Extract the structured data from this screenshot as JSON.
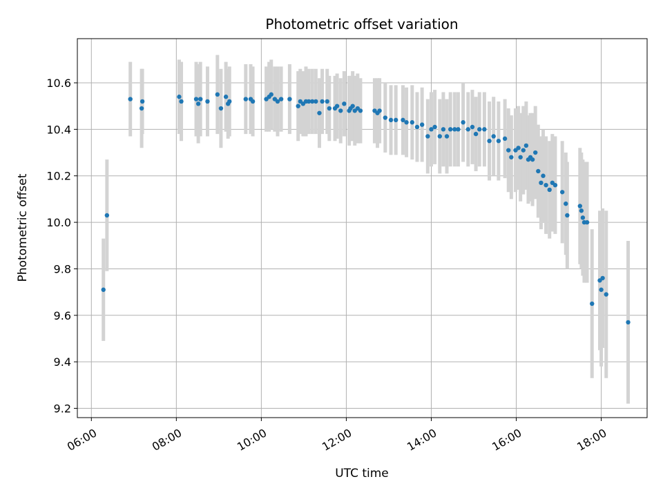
{
  "chart_data": {
    "type": "scatter",
    "title": "Photometric offset variation",
    "xlabel": "UTC time",
    "ylabel": "Photometric offset",
    "x_tick_labels": [
      "06:00",
      "08:00",
      "10:00",
      "12:00",
      "14:00",
      "16:00",
      "18:00"
    ],
    "x_ticks_hours": [
      6,
      8,
      10,
      12,
      14,
      16,
      18
    ],
    "y_ticks": [
      9.2,
      9.4,
      9.6,
      9.8,
      10.0,
      10.2,
      10.4,
      10.6
    ],
    "y_tick_labels": [
      "9.2",
      "9.4",
      "9.6",
      "9.8",
      "10.0",
      "10.2",
      "10.4",
      "10.6"
    ],
    "xlim_hours": [
      5.67,
      19.08
    ],
    "ylim": [
      9.16,
      10.79
    ],
    "grid": true,
    "colors": {
      "point": "#1f77b4",
      "error_bar": "#d3d3d3",
      "grid": "#b0b0b0"
    },
    "series": [
      {
        "points": [
          {
            "t": "06:17",
            "y": 9.71,
            "e": 0.22
          },
          {
            "t": "06:22",
            "y": 10.03,
            "e": 0.24
          },
          {
            "t": "06:55",
            "y": 10.53,
            "e": 0.16
          },
          {
            "t": "07:11",
            "y": 10.49,
            "e": 0.17
          },
          {
            "t": "07:12",
            "y": 10.52,
            "e": 0.14
          },
          {
            "t": "08:04",
            "y": 10.54,
            "e": 0.16
          },
          {
            "t": "08:07",
            "y": 10.52,
            "e": 0.17
          },
          {
            "t": "08:28",
            "y": 10.53,
            "e": 0.16
          },
          {
            "t": "08:31",
            "y": 10.51,
            "e": 0.17
          },
          {
            "t": "08:34",
            "y": 10.53,
            "e": 0.16
          },
          {
            "t": "08:44",
            "y": 10.52,
            "e": 0.15
          },
          {
            "t": "08:58",
            "y": 10.55,
            "e": 0.17
          },
          {
            "t": "09:03",
            "y": 10.49,
            "e": 0.17
          },
          {
            "t": "09:10",
            "y": 10.54,
            "e": 0.15
          },
          {
            "t": "09:13",
            "y": 10.51,
            "e": 0.15
          },
          {
            "t": "09:15",
            "y": 10.52,
            "e": 0.15
          },
          {
            "t": "09:38",
            "y": 10.53,
            "e": 0.15
          },
          {
            "t": "09:45",
            "y": 10.53,
            "e": 0.15
          },
          {
            "t": "09:48",
            "y": 10.52,
            "e": 0.15
          },
          {
            "t": "10:07",
            "y": 10.53,
            "e": 0.14
          },
          {
            "t": "10:11",
            "y": 10.54,
            "e": 0.15
          },
          {
            "t": "10:14",
            "y": 10.55,
            "e": 0.15
          },
          {
            "t": "10:19",
            "y": 10.53,
            "e": 0.14
          },
          {
            "t": "10:23",
            "y": 10.52,
            "e": 0.15
          },
          {
            "t": "10:28",
            "y": 10.53,
            "e": 0.14
          },
          {
            "t": "10:40",
            "y": 10.53,
            "e": 0.15
          },
          {
            "t": "10:52",
            "y": 10.5,
            "e": 0.15
          },
          {
            "t": "10:55",
            "y": 10.52,
            "e": 0.14
          },
          {
            "t": "10:59",
            "y": 10.51,
            "e": 0.14
          },
          {
            "t": "11:03",
            "y": 10.52,
            "e": 0.15
          },
          {
            "t": "11:07",
            "y": 10.52,
            "e": 0.14
          },
          {
            "t": "11:12",
            "y": 10.52,
            "e": 0.14
          },
          {
            "t": "11:17",
            "y": 10.52,
            "e": 0.14
          },
          {
            "t": "11:22",
            "y": 10.47,
            "e": 0.15
          },
          {
            "t": "11:26",
            "y": 10.52,
            "e": 0.14
          },
          {
            "t": "11:33",
            "y": 10.52,
            "e": 0.14
          },
          {
            "t": "11:36",
            "y": 10.49,
            "e": 0.14
          },
          {
            "t": "11:44",
            "y": 10.49,
            "e": 0.14
          },
          {
            "t": "11:47",
            "y": 10.5,
            "e": 0.14
          },
          {
            "t": "11:52",
            "y": 10.48,
            "e": 0.14
          },
          {
            "t": "11:57",
            "y": 10.51,
            "e": 0.14
          },
          {
            "t": "12:04",
            "y": 10.48,
            "e": 0.15
          },
          {
            "t": "12:06",
            "y": 10.49,
            "e": 0.14
          },
          {
            "t": "12:09",
            "y": 10.5,
            "e": 0.15
          },
          {
            "t": "12:12",
            "y": 10.48,
            "e": 0.15
          },
          {
            "t": "12:16",
            "y": 10.49,
            "e": 0.15
          },
          {
            "t": "12:20",
            "y": 10.48,
            "e": 0.14
          },
          {
            "t": "12:40",
            "y": 10.48,
            "e": 0.14
          },
          {
            "t": "12:44",
            "y": 10.47,
            "e": 0.15
          },
          {
            "t": "12:47",
            "y": 10.48,
            "e": 0.14
          },
          {
            "t": "12:55",
            "y": 10.45,
            "e": 0.15
          },
          {
            "t": "13:03",
            "y": 10.44,
            "e": 0.15
          },
          {
            "t": "13:10",
            "y": 10.44,
            "e": 0.15
          },
          {
            "t": "13:20",
            "y": 10.44,
            "e": 0.15
          },
          {
            "t": "13:25",
            "y": 10.43,
            "e": 0.15
          },
          {
            "t": "13:33",
            "y": 10.43,
            "e": 0.16
          },
          {
            "t": "13:40",
            "y": 10.41,
            "e": 0.15
          },
          {
            "t": "13:47",
            "y": 10.42,
            "e": 0.16
          },
          {
            "t": "13:55",
            "y": 10.37,
            "e": 0.16
          },
          {
            "t": "14:00",
            "y": 10.4,
            "e": 0.16
          },
          {
            "t": "14:05",
            "y": 10.41,
            "e": 0.16
          },
          {
            "t": "14:12",
            "y": 10.37,
            "e": 0.16
          },
          {
            "t": "14:17",
            "y": 10.4,
            "e": 0.16
          },
          {
            "t": "14:22",
            "y": 10.37,
            "e": 0.16
          },
          {
            "t": "14:27",
            "y": 10.4,
            "e": 0.16
          },
          {
            "t": "14:33",
            "y": 10.4,
            "e": 0.16
          },
          {
            "t": "14:38",
            "y": 10.4,
            "e": 0.16
          },
          {
            "t": "14:45",
            "y": 10.43,
            "e": 0.17
          },
          {
            "t": "14:52",
            "y": 10.4,
            "e": 0.16
          },
          {
            "t": "14:58",
            "y": 10.41,
            "e": 0.16
          },
          {
            "t": "15:03",
            "y": 10.38,
            "e": 0.16
          },
          {
            "t": "15:08",
            "y": 10.4,
            "e": 0.16
          },
          {
            "t": "15:15",
            "y": 10.4,
            "e": 0.16
          },
          {
            "t": "15:22",
            "y": 10.35,
            "e": 0.17
          },
          {
            "t": "15:28",
            "y": 10.37,
            "e": 0.17
          },
          {
            "t": "15:35",
            "y": 10.35,
            "e": 0.17
          },
          {
            "t": "15:44",
            "y": 10.36,
            "e": 0.17
          },
          {
            "t": "15:49",
            "y": 10.31,
            "e": 0.18
          },
          {
            "t": "15:53",
            "y": 10.28,
            "e": 0.18
          },
          {
            "t": "15:59",
            "y": 10.31,
            "e": 0.18
          },
          {
            "t": "16:03",
            "y": 10.32,
            "e": 0.18
          },
          {
            "t": "16:06",
            "y": 10.28,
            "e": 0.19
          },
          {
            "t": "16:10",
            "y": 10.31,
            "e": 0.19
          },
          {
            "t": "16:14",
            "y": 10.33,
            "e": 0.19
          },
          {
            "t": "16:17",
            "y": 10.27,
            "e": 0.19
          },
          {
            "t": "16:20",
            "y": 10.28,
            "e": 0.19
          },
          {
            "t": "16:23",
            "y": 10.27,
            "e": 0.2
          },
          {
            "t": "16:27",
            "y": 10.3,
            "e": 0.2
          },
          {
            "t": "16:31",
            "y": 10.22,
            "e": 0.2
          },
          {
            "t": "16:35",
            "y": 10.17,
            "e": 0.2
          },
          {
            "t": "16:38",
            "y": 10.2,
            "e": 0.2
          },
          {
            "t": "16:42",
            "y": 10.16,
            "e": 0.21
          },
          {
            "t": "16:47",
            "y": 10.14,
            "e": 0.21
          },
          {
            "t": "16:51",
            "y": 10.17,
            "e": 0.21
          },
          {
            "t": "16:55",
            "y": 10.16,
            "e": 0.21
          },
          {
            "t": "17:05",
            "y": 10.13,
            "e": 0.22
          },
          {
            "t": "17:10",
            "y": 10.08,
            "e": 0.22
          },
          {
            "t": "17:12",
            "y": 10.03,
            "e": 0.23
          },
          {
            "t": "17:30",
            "y": 10.07,
            "e": 0.25
          },
          {
            "t": "17:32",
            "y": 10.05,
            "e": 0.25
          },
          {
            "t": "17:34",
            "y": 10.02,
            "e": 0.25
          },
          {
            "t": "17:36",
            "y": 10.0,
            "e": 0.26
          },
          {
            "t": "17:40",
            "y": 10.0,
            "e": 0.26
          },
          {
            "t": "17:47",
            "y": 9.65,
            "e": 0.32
          },
          {
            "t": "17:58",
            "y": 9.75,
            "e": 0.3
          },
          {
            "t": "18:00",
            "y": 9.71,
            "e": 0.33
          },
          {
            "t": "18:02",
            "y": 9.76,
            "e": 0.3
          },
          {
            "t": "18:07",
            "y": 9.69,
            "e": 0.36
          },
          {
            "t": "18:38",
            "y": 9.57,
            "e": 0.35
          }
        ]
      }
    ]
  }
}
